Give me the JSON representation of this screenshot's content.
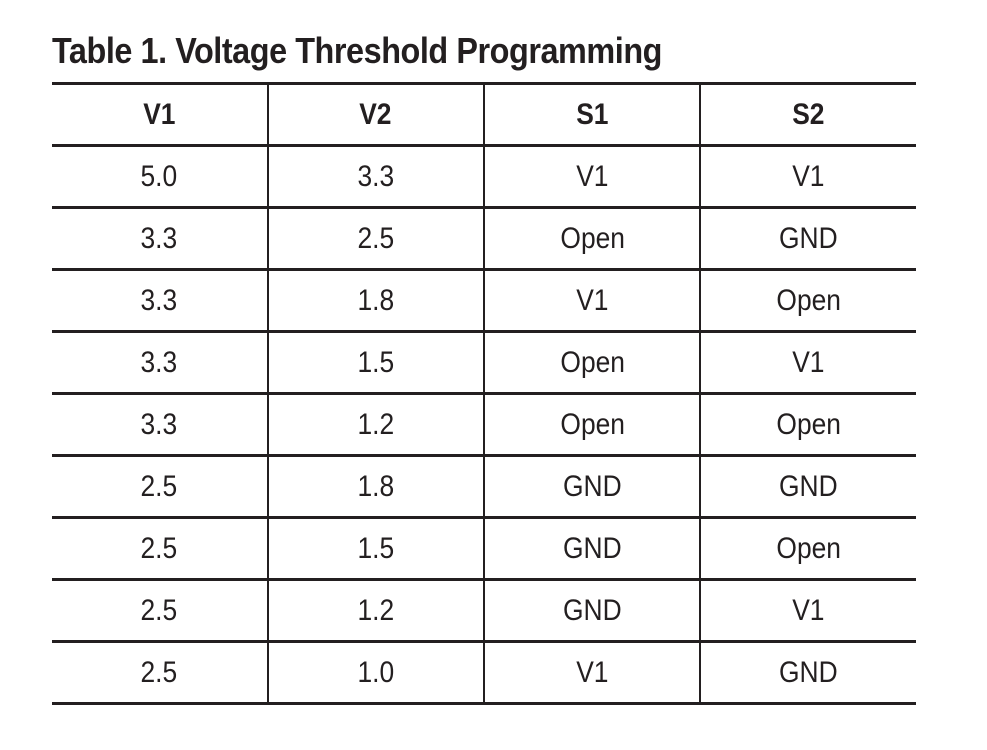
{
  "page": {
    "background_color": "#ffffff",
    "text_color": "#231f20",
    "rule_color": "#231f20"
  },
  "table": {
    "title": "Table 1. Voltage Threshold Programming",
    "columns": [
      "V1",
      "V2",
      "S1",
      "S2"
    ],
    "rows": [
      [
        "5.0",
        "3.3",
        "V1",
        "V1"
      ],
      [
        "3.3",
        "2.5",
        "Open",
        "GND"
      ],
      [
        "3.3",
        "1.8",
        "V1",
        "Open"
      ],
      [
        "3.3",
        "1.5",
        "Open",
        "V1"
      ],
      [
        "3.3",
        "1.2",
        "Open",
        "Open"
      ],
      [
        "2.5",
        "1.8",
        "GND",
        "GND"
      ],
      [
        "2.5",
        "1.5",
        "GND",
        "Open"
      ],
      [
        "2.5",
        "1.2",
        "GND",
        "V1"
      ],
      [
        "2.5",
        "1.0",
        "V1",
        "GND"
      ]
    ]
  }
}
